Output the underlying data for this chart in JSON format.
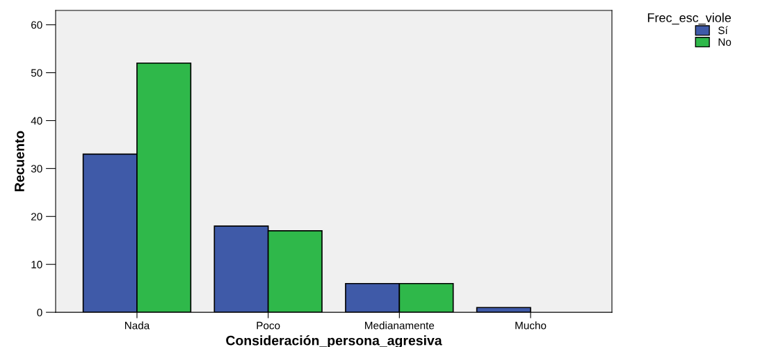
{
  "chart_data": {
    "type": "bar",
    "xlabel": "Consideración_persona_agresiva",
    "ylabel": "Recuento",
    "legend_title": "Frec_esc_viole",
    "categories": [
      "Nada",
      "Poco",
      "Medianamente",
      "Mucho"
    ],
    "series": [
      {
        "name": "Sí",
        "color": "#3f5aa8",
        "values": [
          33,
          18,
          6,
          1
        ]
      },
      {
        "name": "No",
        "color": "#2fb84a",
        "values": [
          52,
          17,
          6,
          null
        ]
      }
    ],
    "ylim": [
      0,
      63
    ],
    "yticks": [
      0,
      10,
      20,
      30,
      40,
      50,
      60
    ],
    "grid": false,
    "legend": "top right"
  }
}
